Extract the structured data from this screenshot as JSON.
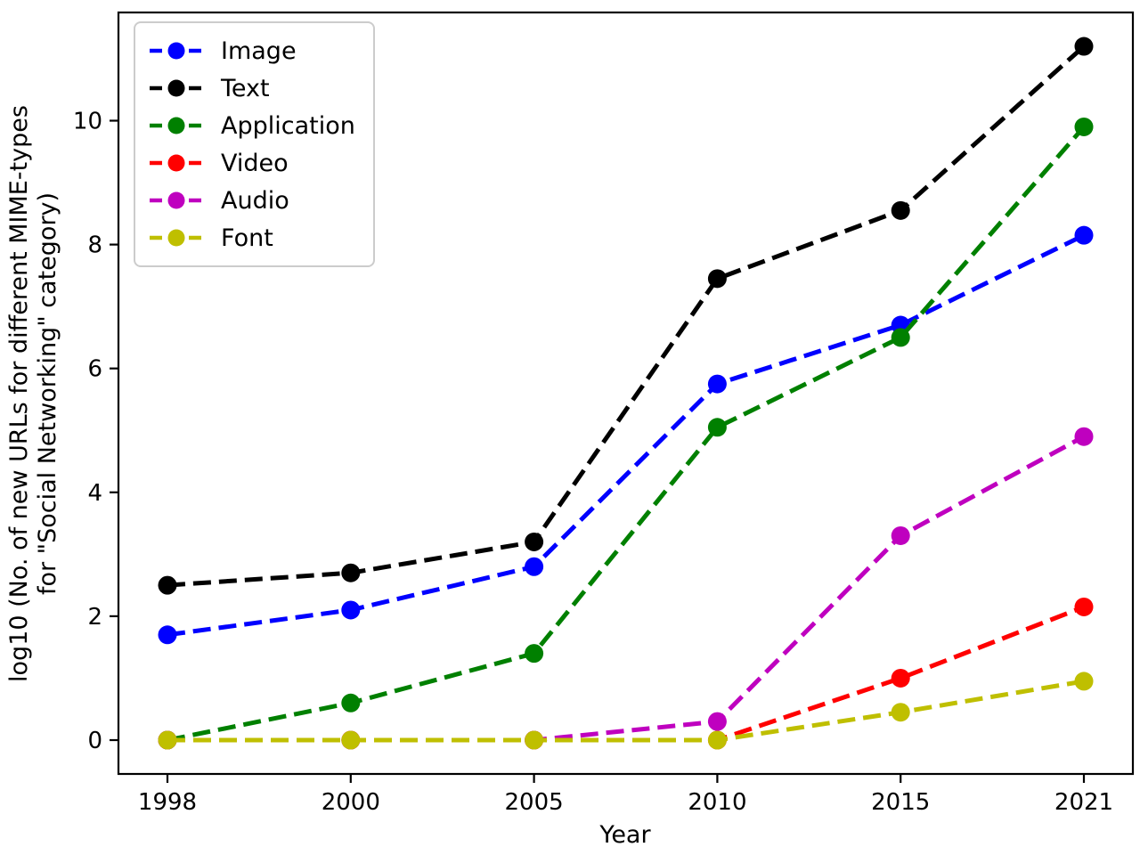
{
  "figure": {
    "background": "#ffffff",
    "axis_color": "#000000",
    "xlabel": "Year",
    "ylabel_line1": "log10 (No. of new URLs for different MIME-types",
    "ylabel_line2": "for \"Social Networking\" category)"
  },
  "chart_data": {
    "type": "line",
    "title": "",
    "xlabel": "Year",
    "ylabel": "log10 (No. of new URLs for different MIME-types for \"Social Networking\" category)",
    "categories": [
      "1998",
      "2000",
      "2005",
      "2010",
      "2015",
      "2021"
    ],
    "yticks": [
      0,
      2,
      4,
      6,
      8,
      10
    ],
    "ylim": [
      -0.56,
      11.76
    ],
    "grid": false,
    "legend_position": "upper left",
    "line_style": "dashed",
    "marker": "circle",
    "series": [
      {
        "name": "Image",
        "color": "#0000ff",
        "values": [
          1.7,
          2.1,
          2.8,
          5.75,
          6.7,
          8.15
        ]
      },
      {
        "name": "Text",
        "color": "#000000",
        "values": [
          2.5,
          2.7,
          3.2,
          7.45,
          8.55,
          11.2
        ]
      },
      {
        "name": "Application",
        "color": "#008000",
        "values": [
          0.0,
          0.6,
          1.4,
          5.05,
          6.5,
          9.9
        ]
      },
      {
        "name": "Video",
        "color": "#ff0000",
        "values": [
          0.0,
          0.0,
          0.0,
          0.0,
          1.0,
          2.15
        ]
      },
      {
        "name": "Audio",
        "color": "#bf00bf",
        "values": [
          0.0,
          0.0,
          0.0,
          0.3,
          3.3,
          4.9
        ]
      },
      {
        "name": "Font",
        "color": "#bfbf00",
        "values": [
          0.0,
          0.0,
          0.0,
          0.0,
          0.45,
          0.95
        ]
      }
    ]
  }
}
